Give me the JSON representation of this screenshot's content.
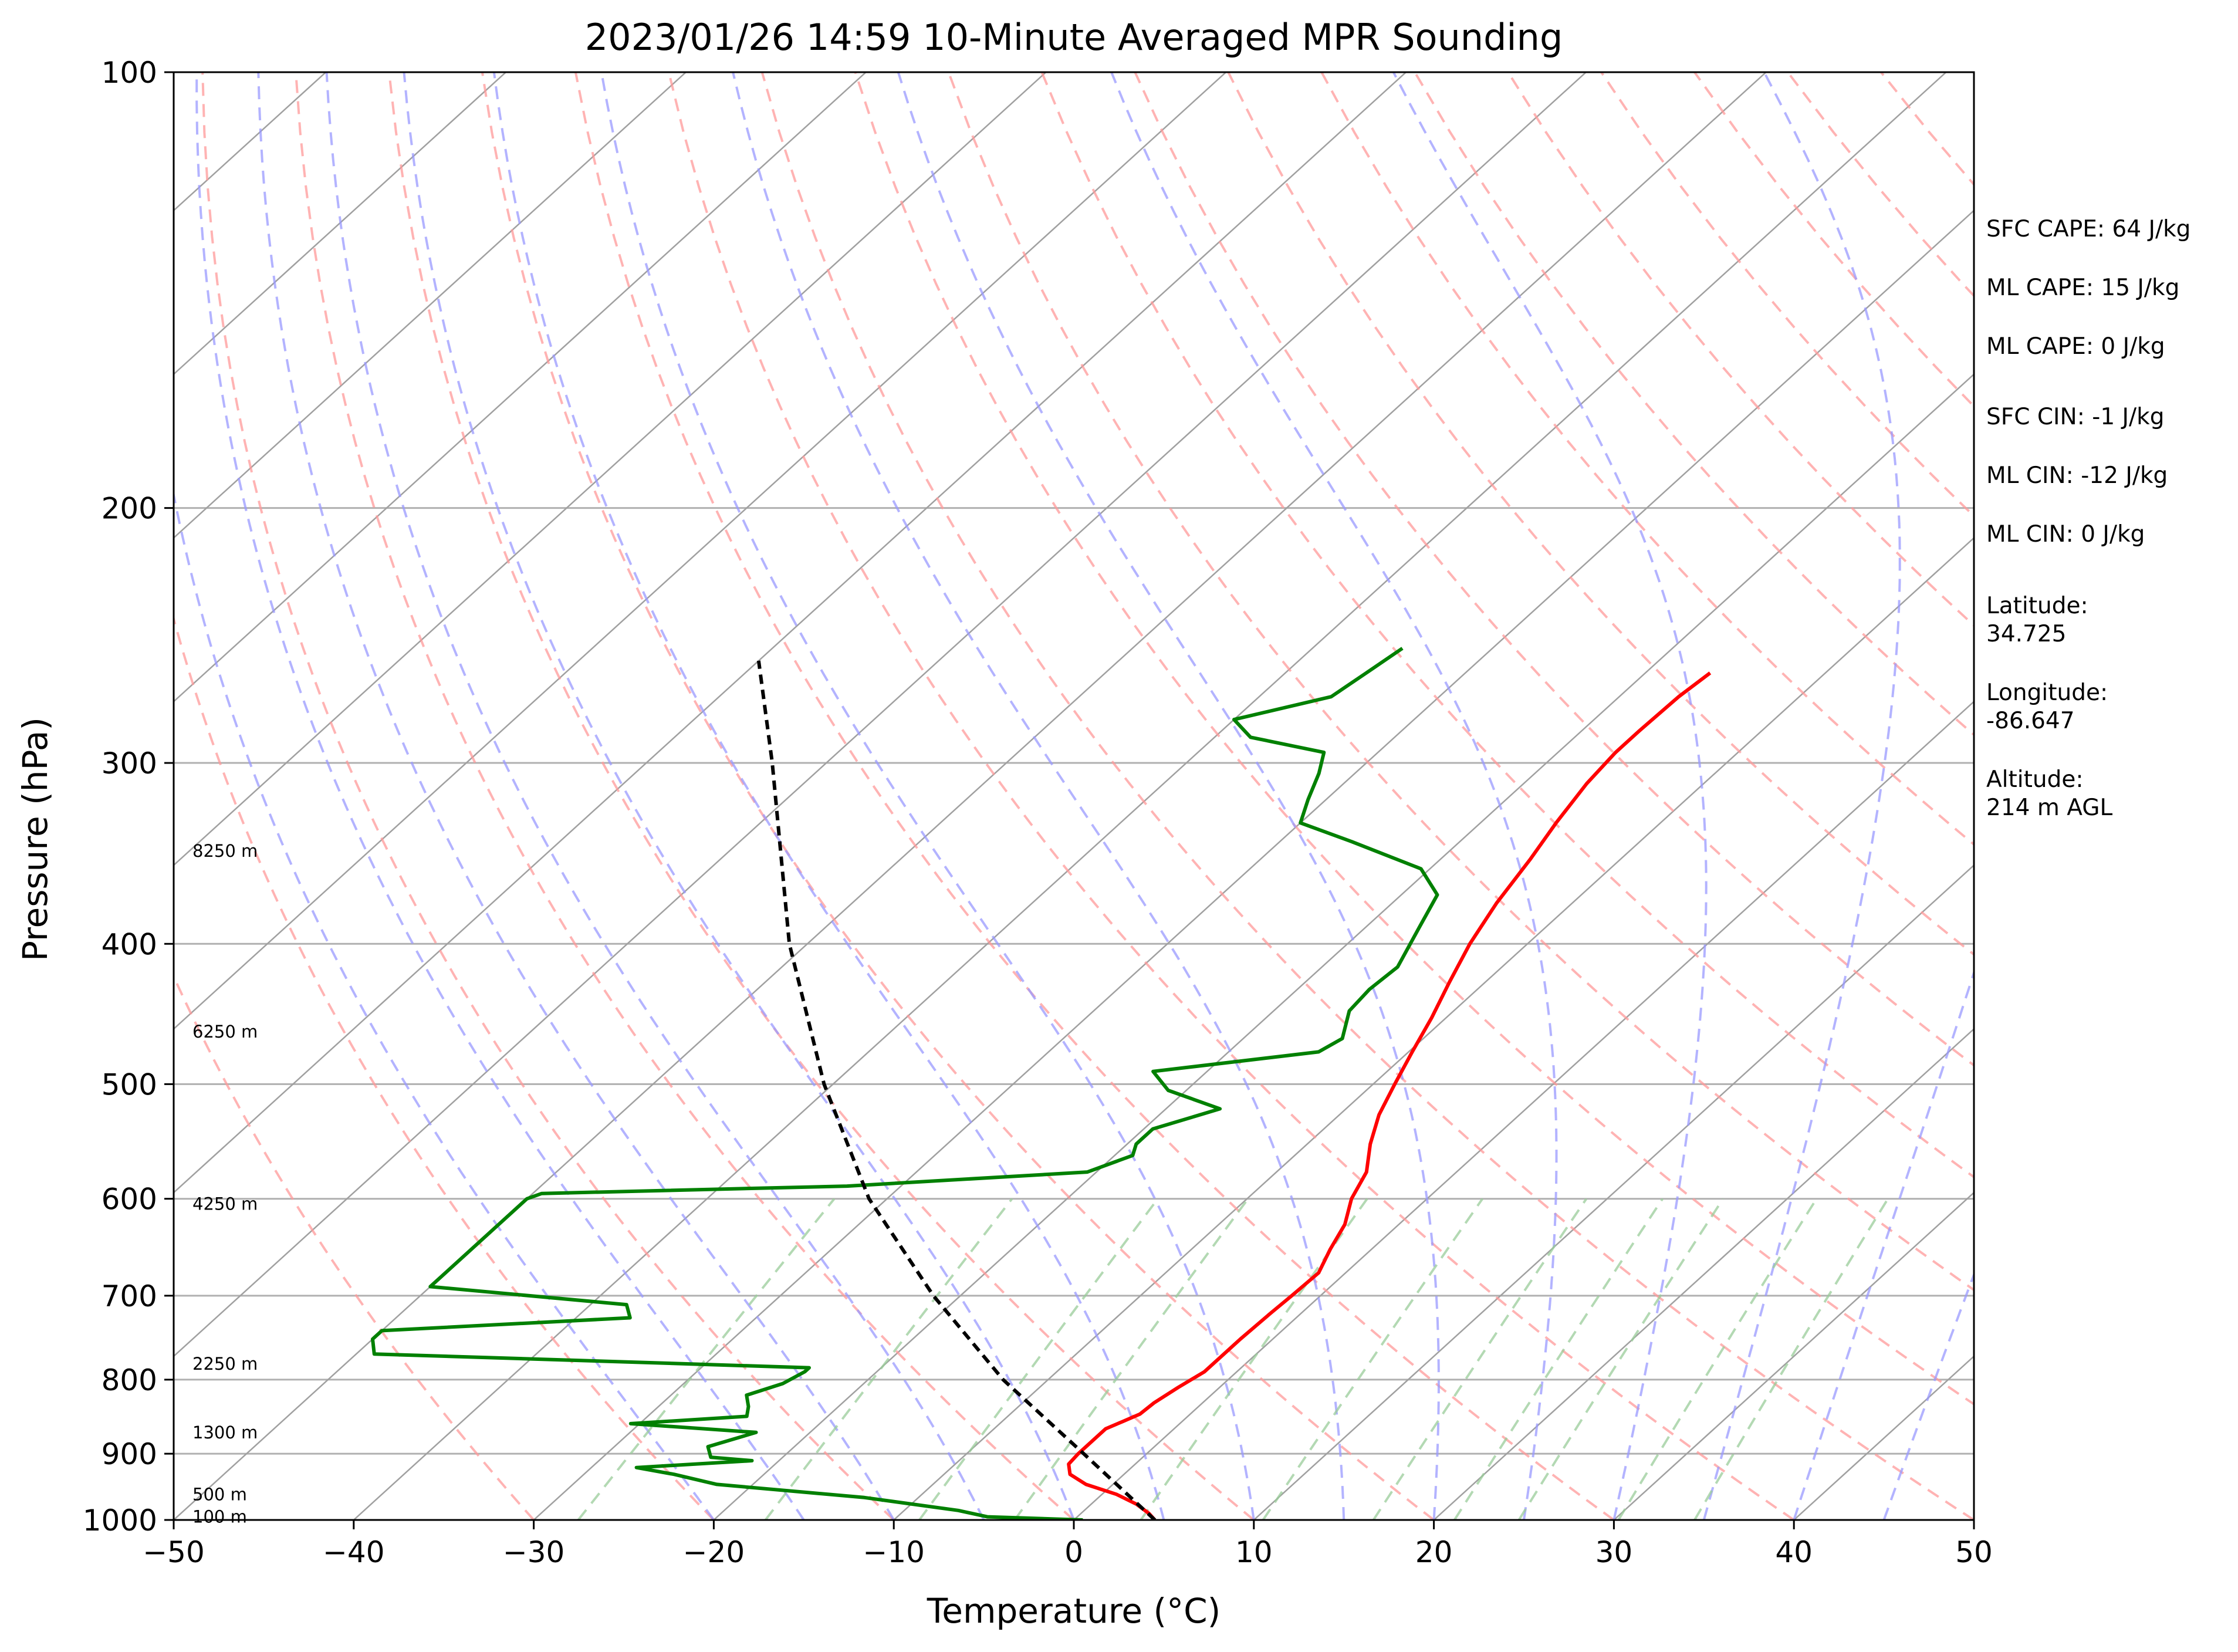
{
  "chart_data": {
    "type": "line",
    "diagram": "skew-T log-P",
    "title": "2023/01/26 14:59 10-Minute Averaged MPR Sounding",
    "xlabel": "Temperature (°C)",
    "ylabel": "Pressure (hPa)",
    "xlim": [
      -50,
      50
    ],
    "ylim": [
      1000,
      100
    ],
    "y_scale": "log",
    "x_ticks": [
      "−50",
      "−40",
      "−30",
      "−20",
      "−10",
      "0",
      "10",
      "20",
      "30",
      "40",
      "50"
    ],
    "y_ticks": [
      "1000",
      "900",
      "800",
      "700",
      "600",
      "500",
      "400",
      "300",
      "200",
      "100"
    ],
    "grid": true,
    "background_lines": {
      "isotherm_color": "#a0a0a0",
      "dry_adiabat_color": "#ff9999",
      "moist_adiabat_color": "#9999ff",
      "mixing_ratio_color": "#99cc99"
    },
    "altitude_labels": [
      {
        "p": 995,
        "text": "100 m"
      },
      {
        "p": 960,
        "text": "500 m"
      },
      {
        "p": 870,
        "text": "1300 m"
      },
      {
        "p": 780,
        "text": "2250 m"
      },
      {
        "p": 605,
        "text": "4250 m"
      },
      {
        "p": 460,
        "text": "6250 m"
      },
      {
        "p": 345,
        "text": "8250 m"
      }
    ],
    "series": [
      {
        "color": "#ff0000",
        "points": [
          [
            1000,
            4.5
          ],
          [
            990,
            3.8
          ],
          [
            975,
            2.5
          ],
          [
            960,
            0.8
          ],
          [
            945,
            -1.5
          ],
          [
            930,
            -3.0
          ],
          [
            915,
            -3.7
          ],
          [
            900,
            -3.8
          ],
          [
            880,
            -3.8
          ],
          [
            865,
            -3.8
          ],
          [
            855,
            -3.3
          ],
          [
            845,
            -2.8
          ],
          [
            830,
            -2.7
          ],
          [
            810,
            -2.3
          ],
          [
            790,
            -1.8
          ],
          [
            770,
            -1.8
          ],
          [
            750,
            -1.8
          ],
          [
            720,
            -1.7
          ],
          [
            700,
            -1.6
          ],
          [
            675,
            -1.5
          ],
          [
            650,
            -2.3
          ],
          [
            625,
            -3.0
          ],
          [
            600,
            -4.2
          ],
          [
            575,
            -5.0
          ],
          [
            550,
            -6.5
          ],
          [
            525,
            -7.8
          ],
          [
            500,
            -8.8
          ],
          [
            475,
            -9.8
          ],
          [
            450,
            -10.8
          ],
          [
            425,
            -12.0
          ],
          [
            400,
            -13.2
          ],
          [
            375,
            -14.2
          ],
          [
            350,
            -15.0
          ],
          [
            330,
            -15.8
          ],
          [
            310,
            -16.5
          ],
          [
            295,
            -16.8
          ],
          [
            285,
            -16.8
          ],
          [
            270,
            -16.7
          ],
          [
            260,
            -16.4
          ]
        ]
      },
      {
        "color": "#008000",
        "points": [
          [
            1000,
            0.5
          ],
          [
            995,
            -5.0
          ],
          [
            985,
            -7.0
          ],
          [
            965,
            -13.0
          ],
          [
            945,
            -22.0
          ],
          [
            930,
            -25.0
          ],
          [
            920,
            -27.5
          ],
          [
            910,
            -21.5
          ],
          [
            905,
            -24.0
          ],
          [
            890,
            -24.8
          ],
          [
            870,
            -23.0
          ],
          [
            858,
            -30.5
          ],
          [
            848,
            -24.5
          ],
          [
            835,
            -25.0
          ],
          [
            820,
            -25.8
          ],
          [
            805,
            -24.5
          ],
          [
            790,
            -24.0
          ],
          [
            785,
            -24.0
          ],
          [
            768,
            -49.0
          ],
          [
            750,
            -50.0
          ],
          [
            740,
            -50.0
          ],
          [
            725,
            -37.0
          ],
          [
            710,
            -38.0
          ],
          [
            690,
            -50.0
          ],
          [
            600,
            -50.0
          ],
          [
            595,
            -49.5
          ],
          [
            588,
            -33.0
          ],
          [
            575,
            -20.5
          ],
          [
            560,
            -19.0
          ],
          [
            550,
            -19.5
          ],
          [
            537,
            -19.5
          ],
          [
            520,
            -17.0
          ],
          [
            505,
            -21.0
          ],
          [
            490,
            -23.0
          ],
          [
            475,
            -15.0
          ],
          [
            465,
            -14.5
          ],
          [
            445,
            -15.8
          ],
          [
            430,
            -16.0
          ],
          [
            415,
            -15.8
          ],
          [
            390,
            -17.0
          ],
          [
            370,
            -18.0
          ],
          [
            355,
            -20.5
          ],
          [
            340,
            -26.0
          ],
          [
            330,
            -30.0
          ],
          [
            318,
            -31.0
          ],
          [
            305,
            -32.0
          ],
          [
            295,
            -33.0
          ],
          [
            288,
            -38.0
          ],
          [
            280,
            -40.0
          ],
          [
            270,
            -36.0
          ],
          [
            260,
            -35.5
          ],
          [
            250,
            -35.0
          ]
        ]
      },
      {
        "color": "#000000",
        "dashed": true,
        "points": [
          [
            1000,
            4.5
          ],
          [
            900,
            -3.5
          ],
          [
            800,
            -12.5
          ],
          [
            700,
            -21.5
          ],
          [
            600,
            -31.0
          ],
          [
            500,
            -40.5
          ],
          [
            400,
            -51.0
          ],
          [
            300,
            -63.0
          ],
          [
            255,
            -70.0
          ]
        ]
      }
    ]
  },
  "side_panel": {
    "lines": [
      "SFC CAPE: 64 J/kg",
      "ML CAPE: 15 J/kg",
      "ML CAPE: 0 J/kg",
      "SFC CIN: -1 J/kg",
      "ML CIN: -12 J/kg",
      "ML CIN: 0 J/kg",
      "Latitude:",
      "34.725",
      "Longitude:",
      "-86.647",
      "Altitude:",
      "214 m AGL"
    ]
  }
}
